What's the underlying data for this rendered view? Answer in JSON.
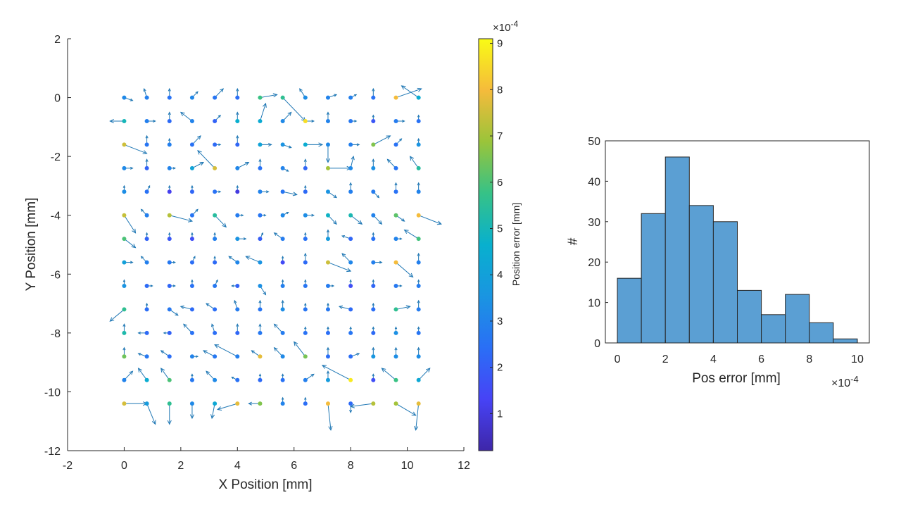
{
  "chart_data": [
    {
      "type": "scatter",
      "subtype": "quiver",
      "xlabel": "X Position [mm]",
      "ylabel": "Y Position [mm]",
      "xlim": [
        -2,
        12
      ],
      "ylim": [
        -12,
        2
      ],
      "xticks": [
        -2,
        0,
        2,
        4,
        6,
        8,
        10,
        12
      ],
      "yticks": [
        -12,
        -10,
        -8,
        -6,
        -4,
        -2,
        0,
        2
      ],
      "grid": false,
      "colormap": "parula",
      "colorbar": {
        "label": "Position error [mm]",
        "exponent_label": "×10",
        "exponent": "-4",
        "ticks": [
          1,
          2,
          3,
          4,
          5,
          6,
          7,
          8,
          9
        ],
        "range": [
          0.2,
          9.1
        ]
      },
      "grid_points": {
        "x": [
          0,
          0.8,
          1.6,
          2.4,
          3.2,
          4.0,
          4.8,
          5.6,
          6.4,
          7.2,
          8.0,
          8.8,
          9.6,
          10.4
        ],
        "y": [
          0,
          -0.8,
          -1.6,
          -2.4,
          -3.2,
          -4.0,
          -4.8,
          -5.6,
          -6.4,
          -7.2,
          -8.0,
          -8.8,
          -9.6,
          -10.4
        ]
      },
      "errors": [
        [
          3.2,
          2.9,
          2.5,
          3.1,
          2.6,
          2.4,
          5.8,
          5.6,
          3.3,
          3.0,
          2.9,
          2.5,
          8.0,
          4.5
        ],
        [
          5.0,
          2.9,
          2.3,
          3.0,
          2.1,
          4.6,
          4.4,
          3.2,
          8.6,
          3.0,
          2.7,
          1.8,
          2.8,
          2.5
        ],
        [
          7.5,
          2.6,
          2.9,
          2.5,
          2.3,
          2.2,
          4.1,
          3.5,
          4.5,
          3.2,
          2.9,
          6.6,
          2.5,
          3.5
        ],
        [
          3.2,
          2.1,
          3.0,
          4.1,
          7.6,
          3.1,
          2.5,
          3.0,
          2.2,
          7.0,
          3.2,
          3.4,
          2.6,
          5.4
        ],
        [
          3.3,
          2.5,
          1.2,
          2.2,
          2.5,
          1.0,
          3.0,
          2.6,
          2.3,
          3.5,
          2.9,
          2.8,
          2.5,
          3.0
        ],
        [
          7.4,
          2.9,
          7.2,
          2.6,
          5.4,
          2.8,
          2.6,
          3.2,
          3.3,
          4.8,
          5.1,
          3.0,
          6.2,
          8.0
        ],
        [
          6.0,
          2.1,
          1.8,
          1.6,
          2.9,
          3.5,
          2.0,
          2.8,
          2.5,
          3.8,
          2.2,
          2.5,
          3.0,
          5.9
        ],
        [
          4.0,
          2.9,
          2.7,
          2.4,
          2.3,
          3.1,
          3.5,
          1.5,
          2.3,
          7.5,
          3.1,
          2.9,
          8.0,
          2.9
        ],
        [
          3.5,
          2.3,
          2.2,
          2.5,
          2.7,
          2.1,
          3.4,
          2.9,
          2.6,
          2.8,
          1.6,
          2.2,
          2.7,
          2.8
        ],
        [
          5.6,
          2.4,
          2.7,
          2.3,
          2.4,
          2.8,
          2.6,
          3.3,
          2.6,
          2.7,
          2.3,
          2.4,
          5.6,
          2.8
        ],
        [
          5.2,
          2.3,
          2.1,
          2.5,
          2.4,
          2.2,
          2.7,
          2.8,
          2.5,
          2.4,
          2.6,
          2.3,
          3.4,
          2.6
        ],
        [
          6.4,
          2.7,
          2.4,
          3.0,
          2.7,
          2.9,
          7.8,
          3.2,
          6.5,
          2.4,
          2.4,
          3.6,
          3.3,
          3.3
        ],
        [
          3.0,
          4.5,
          6.0,
          2.7,
          3.2,
          2.5,
          2.3,
          2.5,
          2.9,
          3.8,
          8.8,
          1.6,
          5.8,
          4.3
        ],
        [
          7.6,
          3.8,
          5.6,
          3.2,
          4.3,
          7.8,
          6.6,
          3.0,
          2.4,
          8.0,
          2.3,
          7.2,
          7.0,
          7.8
        ]
      ],
      "displacements": [
        [
          [
            0.3,
            -0.1
          ],
          [
            -0.1,
            0.3
          ],
          [
            0,
            0.3
          ],
          [
            0.2,
            0.2
          ],
          [
            0.3,
            0.3
          ],
          [
            0,
            0.3
          ],
          [
            0.6,
            0.1
          ],
          [
            0.8,
            -0.8
          ],
          [
            -0.2,
            0.3
          ],
          [
            0.3,
            0.1
          ],
          [
            0.2,
            0.1
          ],
          [
            0,
            0.3
          ],
          [
            0.9,
            0.3
          ],
          [
            -0.6,
            0.4
          ]
        ],
        [
          [
            -0.5,
            0
          ],
          [
            0.3,
            0
          ],
          [
            0,
            0.3
          ],
          [
            -0.4,
            0.3
          ],
          [
            0.2,
            0.2
          ],
          [
            0,
            0.3
          ],
          [
            0.2,
            0.6
          ],
          [
            0.3,
            0.3
          ],
          [
            0.3,
            0
          ],
          [
            0,
            0.3
          ],
          [
            0.2,
            0
          ],
          [
            0,
            0.2
          ],
          [
            0.3,
            0
          ],
          [
            0,
            0.2
          ]
        ],
        [
          [
            0.8,
            -0.3
          ],
          [
            0,
            0.3
          ],
          [
            0,
            0.2
          ],
          [
            0.3,
            0.3
          ],
          [
            0.2,
            0
          ],
          [
            0,
            0.3
          ],
          [
            0.4,
            0
          ],
          [
            0.3,
            -0.1
          ],
          [
            0.6,
            0
          ],
          [
            0,
            -0.6
          ],
          [
            0.3,
            0
          ],
          [
            0.6,
            0.3
          ],
          [
            0.2,
            0.2
          ],
          [
            0,
            0.2
          ]
        ],
        [
          [
            0.3,
            0
          ],
          [
            0,
            0.3
          ],
          [
            0.2,
            0
          ],
          [
            0.4,
            0.2
          ],
          [
            -0.6,
            0.6
          ],
          [
            0.4,
            0.2
          ],
          [
            0,
            0.3
          ],
          [
            0.2,
            -0.1
          ],
          [
            0,
            0.3
          ],
          [
            0.8,
            0
          ],
          [
            0.1,
            0.4
          ],
          [
            0,
            0.3
          ],
          [
            -0.3,
            0.3
          ],
          [
            -0.3,
            0.4
          ]
        ],
        [
          [
            0,
            0.2
          ],
          [
            0.1,
            0.2
          ],
          [
            0,
            0.2
          ],
          [
            0,
            0.2
          ],
          [
            0.2,
            0
          ],
          [
            0,
            0.2
          ],
          [
            0.3,
            0
          ],
          [
            0.5,
            -0.1
          ],
          [
            0,
            0.2
          ],
          [
            0.3,
            -0.2
          ],
          [
            0,
            0.3
          ],
          [
            0.2,
            -0.2
          ],
          [
            0,
            0.3
          ],
          [
            0,
            0.3
          ]
        ],
        [
          [
            0.4,
            -0.6
          ],
          [
            -0.2,
            0.2
          ],
          [
            0.8,
            -0.2
          ],
          [
            0.2,
            0.2
          ],
          [
            0.4,
            -0.4
          ],
          [
            0.2,
            0
          ],
          [
            0.2,
            0
          ],
          [
            0.2,
            0.1
          ],
          [
            0.3,
            0
          ],
          [
            0.3,
            -0.3
          ],
          [
            0.4,
            -0.3
          ],
          [
            0.3,
            -0.3
          ],
          [
            0.3,
            -0.2
          ],
          [
            0.8,
            -0.3
          ]
        ],
        [
          [
            0.4,
            -0.3
          ],
          [
            0,
            0.2
          ],
          [
            0,
            0.2
          ],
          [
            0,
            0.2
          ],
          [
            0,
            0.2
          ],
          [
            0.3,
            0
          ],
          [
            0.1,
            0.2
          ],
          [
            -0.3,
            0.2
          ],
          [
            0,
            0.2
          ],
          [
            0,
            0.3
          ],
          [
            -0.3,
            0.1
          ],
          [
            0,
            0.2
          ],
          [
            0.2,
            0
          ],
          [
            -0.5,
            0.3
          ]
        ],
        [
          [
            0.3,
            0
          ],
          [
            -0.2,
            0.2
          ],
          [
            0.2,
            0
          ],
          [
            0.1,
            0.2
          ],
          [
            0,
            0.2
          ],
          [
            -0.3,
            0.2
          ],
          [
            -0.5,
            0.2
          ],
          [
            0,
            0.2
          ],
          [
            0,
            0.3
          ],
          [
            0.8,
            -0.3
          ],
          [
            -0.3,
            0.3
          ],
          [
            0.3,
            0
          ],
          [
            0.6,
            -0.5
          ],
          [
            0,
            0.3
          ]
        ],
        [
          [
            0,
            0.2
          ],
          [
            0.2,
            0
          ],
          [
            0.2,
            0
          ],
          [
            0,
            0.2
          ],
          [
            0.1,
            0.2
          ],
          [
            -0.2,
            0
          ],
          [
            0.2,
            -0.3
          ],
          [
            0,
            0.2
          ],
          [
            0,
            0.2
          ],
          [
            0.2,
            0
          ],
          [
            0,
            0.2
          ],
          [
            0,
            0.2
          ],
          [
            0.2,
            0
          ],
          [
            0,
            0.2
          ]
        ],
        [
          [
            -0.5,
            -0.4
          ],
          [
            0,
            0.2
          ],
          [
            0.3,
            -0.2
          ],
          [
            -0.4,
            0.1
          ],
          [
            -0.3,
            0.2
          ],
          [
            -0.1,
            0.3
          ],
          [
            0,
            0.3
          ],
          [
            0,
            0.3
          ],
          [
            0,
            0.2
          ],
          [
            0,
            0.2
          ],
          [
            -0.4,
            0.1
          ],
          [
            0,
            0.2
          ],
          [
            0.5,
            0.1
          ],
          [
            0,
            0.3
          ]
        ],
        [
          [
            0,
            0.3
          ],
          [
            -0.3,
            0
          ],
          [
            -0.2,
            0
          ],
          [
            -0.3,
            0.3
          ],
          [
            -0.1,
            0.3
          ],
          [
            0,
            0.3
          ],
          [
            0,
            0.3
          ],
          [
            -0.3,
            0.3
          ],
          [
            0,
            0.2
          ],
          [
            0,
            0.2
          ],
          [
            0,
            0.2
          ],
          [
            0,
            0.2
          ],
          [
            0,
            0.2
          ],
          [
            0,
            0.2
          ]
        ],
        [
          [
            0,
            0.3
          ],
          [
            -0.3,
            0.1
          ],
          [
            -0.3,
            0.2
          ],
          [
            0.2,
            0
          ],
          [
            -0.4,
            0.2
          ],
          [
            -0.8,
            0.4
          ],
          [
            -0.3,
            0.2
          ],
          [
            -0.3,
            0.3
          ],
          [
            -0.4,
            0.5
          ],
          [
            0,
            0.3
          ],
          [
            0.3,
            0.1
          ],
          [
            0,
            0.3
          ],
          [
            0,
            0.3
          ],
          [
            0,
            0.3
          ]
        ],
        [
          [
            0.3,
            0.3
          ],
          [
            -0.3,
            0.4
          ],
          [
            -0.3,
            0.4
          ],
          [
            0,
            0.2
          ],
          [
            -0.3,
            0.3
          ],
          [
            -0.2,
            0.1
          ],
          [
            0,
            0.2
          ],
          [
            0,
            0.2
          ],
          [
            0.3,
            0.2
          ],
          [
            0,
            0.3
          ],
          [
            -1.0,
            0.5
          ],
          [
            0,
            0.2
          ],
          [
            -0.5,
            0.4
          ],
          [
            0.4,
            0.4
          ]
        ],
        [
          [
            0.8,
            0
          ],
          [
            0.3,
            -0.7
          ],
          [
            0,
            -0.7
          ],
          [
            0,
            -0.5
          ],
          [
            -0.1,
            -0.5
          ],
          [
            -0.7,
            -0.2
          ],
          [
            -0.4,
            0
          ],
          [
            0,
            0.2
          ],
          [
            0,
            0.2
          ],
          [
            0.1,
            -0.9
          ],
          [
            0,
            -0.3
          ],
          [
            -0.8,
            -0.1
          ],
          [
            0.7,
            -0.4
          ],
          [
            -0.1,
            -0.9
          ]
        ]
      ]
    },
    {
      "type": "bar",
      "subtype": "histogram",
      "xlabel": "Pos error [mm]",
      "ylabel": "#",
      "x_exponent_label": "×10",
      "x_exponent": "-4",
      "xlim": [
        -0.5,
        10.5
      ],
      "ylim": [
        0,
        50
      ],
      "xticks": [
        0,
        2,
        4,
        6,
        8,
        10
      ],
      "yticks": [
        0,
        10,
        20,
        30,
        40,
        50
      ],
      "bin_edges": [
        0,
        1,
        2,
        3,
        4,
        5,
        6,
        7,
        8,
        9,
        10
      ],
      "values": [
        16,
        32,
        46,
        34,
        30,
        13,
        7,
        12,
        5,
        1
      ],
      "bar_color": "#5b9fd3",
      "grid": false
    }
  ]
}
